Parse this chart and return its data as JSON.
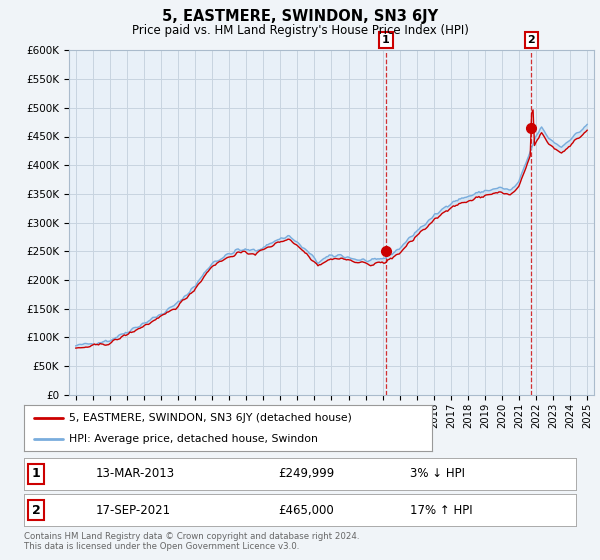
{
  "title": "5, EASTMERE, SWINDON, SN3 6JY",
  "subtitle": "Price paid vs. HM Land Registry's House Price Index (HPI)",
  "legend_line1": "5, EASTMERE, SWINDON, SN3 6JY (detached house)",
  "legend_line2": "HPI: Average price, detached house, Swindon",
  "annotation1_date": "13-MAR-2013",
  "annotation1_price": "£249,999",
  "annotation1_hpi": "3% ↓ HPI",
  "annotation2_date": "17-SEP-2021",
  "annotation2_price": "£465,000",
  "annotation2_hpi": "17% ↑ HPI",
  "footnote": "Contains HM Land Registry data © Crown copyright and database right 2024.\nThis data is licensed under the Open Government Licence v3.0.",
  "hpi_color": "#7aaddd",
  "price_color": "#cc0000",
  "vline_color": "#cc0000",
  "fill_color": "#c8dff0",
  "marker_color": "#cc0000",
  "ylim": [
    0,
    600000
  ],
  "ytick_vals": [
    0,
    50000,
    100000,
    150000,
    200000,
    250000,
    300000,
    350000,
    400000,
    450000,
    500000,
    550000,
    600000
  ],
  "ytick_labels": [
    "£0",
    "£50K",
    "£100K",
    "£150K",
    "£200K",
    "£250K",
    "£300K",
    "£350K",
    "£400K",
    "£450K",
    "£500K",
    "£550K",
    "£600K"
  ],
  "background_color": "#f0f4f8",
  "plot_bg": "#e8f0f8",
  "grid_color": "#c8d4e0",
  "purchase1_x": 2013.2,
  "purchase1_y": 249999,
  "purchase2_x": 2021.72,
  "purchase2_y": 465000,
  "xmin": 1994.6,
  "xmax": 2025.4
}
